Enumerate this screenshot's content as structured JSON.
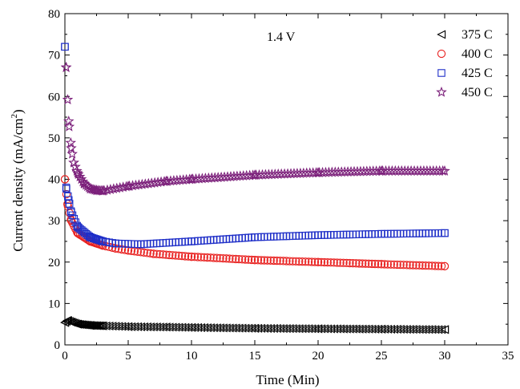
{
  "chart_data": {
    "type": "scatter",
    "title": "",
    "annotation": "1.4 V",
    "xlabel": "Time (Min)",
    "ylabel": "Current density (mA/cm",
    "ylabel_sup": "2",
    "ylabel_close": ")",
    "xlim": [
      0,
      35
    ],
    "ylim": [
      0,
      80
    ],
    "x_ticks": [
      0,
      5,
      10,
      15,
      20,
      25,
      30,
      35
    ],
    "y_ticks": [
      0,
      10,
      20,
      30,
      40,
      50,
      60,
      70,
      80
    ],
    "grid": false,
    "legend_position": "top-right",
    "series": [
      {
        "name": "375  C",
        "marker": "triangle-left",
        "color": "#000000",
        "x": [
          0,
          0.2,
          0.5,
          1,
          2,
          3,
          5,
          8,
          10,
          15,
          20,
          25,
          30
        ],
        "y": [
          5.4,
          5.9,
          5.5,
          5.0,
          4.7,
          4.6,
          4.4,
          4.3,
          4.2,
          4.0,
          3.9,
          3.8,
          3.7
        ]
      },
      {
        "name": "400  C",
        "marker": "circle",
        "color": "#e8201f",
        "x": [
          0,
          0.2,
          0.5,
          1,
          2,
          3,
          4,
          5,
          7,
          10,
          15,
          20,
          25,
          30
        ],
        "y": [
          40,
          34,
          30,
          27,
          25,
          24,
          23.3,
          22.8,
          22,
          21.3,
          20.5,
          20,
          19.5,
          19
        ]
      },
      {
        "name": "425  C",
        "marker": "square",
        "color": "#1f2fc8",
        "x": [
          0,
          0.1,
          0.3,
          0.5,
          1,
          2,
          3,
          4,
          6,
          10,
          15,
          20,
          25,
          30
        ],
        "y": [
          72,
          38,
          35,
          32,
          28.5,
          26,
          25,
          24.5,
          24.3,
          25,
          26,
          26.5,
          26.8,
          27
        ]
      },
      {
        "name": "450  C",
        "marker": "star",
        "color": "#7b1f7a",
        "x": [
          0.1,
          0.3,
          0.5,
          0.7,
          1,
          1.5,
          2,
          2.5,
          3,
          5,
          8,
          10,
          15,
          20,
          25,
          30
        ],
        "y": [
          67,
          54,
          47.5,
          44,
          41.5,
          39,
          37.7,
          37.3,
          37.2,
          38.3,
          39.5,
          40,
          41,
          41.6,
          42,
          42
        ]
      }
    ]
  }
}
